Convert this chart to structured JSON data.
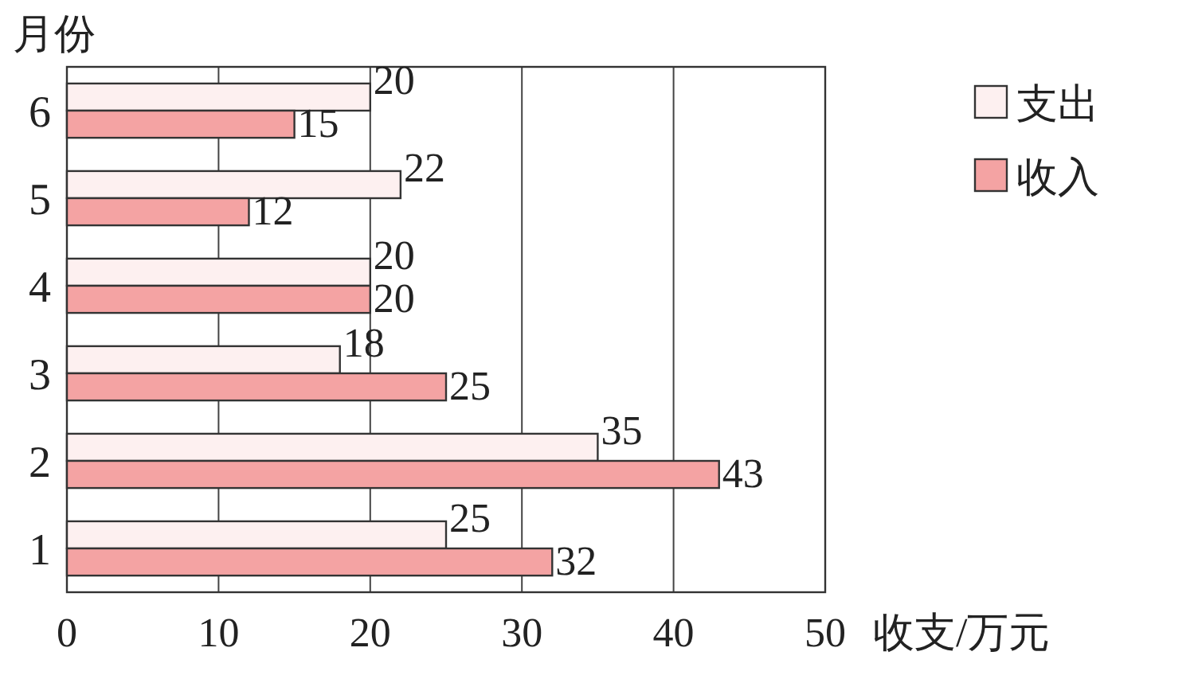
{
  "chart_data": {
    "type": "bar",
    "orientation": "horizontal",
    "ylabel": "月份",
    "xlabel": "收支/万元",
    "categories": [
      "6",
      "5",
      "4",
      "3",
      "2",
      "1"
    ],
    "series": [
      {
        "name": "支出",
        "color": "#fdf0f0",
        "values": [
          20,
          22,
          20,
          18,
          35,
          25
        ]
      },
      {
        "name": "收入",
        "color": "#f4a3a3",
        "values": [
          15,
          12,
          20,
          25,
          43,
          32
        ]
      }
    ],
    "xlim": [
      0,
      50
    ],
    "xticks": [
      0,
      10,
      20,
      30,
      40,
      50
    ],
    "grid": "x",
    "legend": "top right",
    "data_labels": true
  }
}
